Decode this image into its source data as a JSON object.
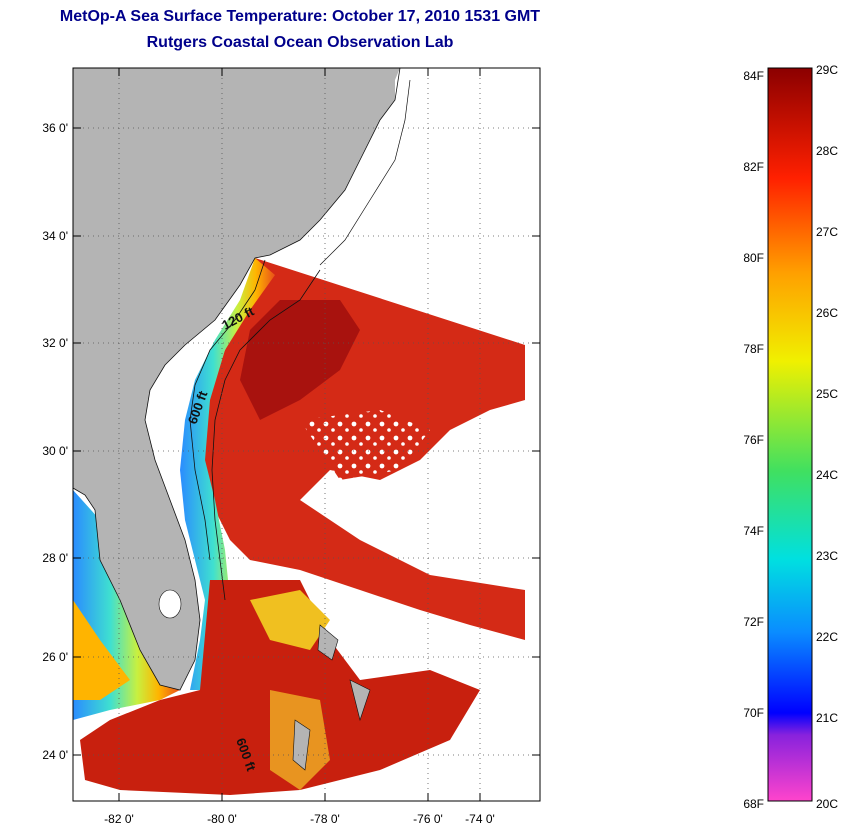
{
  "header": {
    "title": "MetOp-A Sea Surface Temperature:  October 17, 2010 1531 GMT",
    "subtitle": "Rutgers Coastal Ocean Observation Lab"
  },
  "map": {
    "lat_labels": [
      "36 0'",
      "34 0'",
      "32 0'",
      "30 0'",
      "28 0'",
      "26 0'",
      "24 0'"
    ],
    "lon_labels": [
      "-82 0'",
      "-80 0'",
      "-78 0'",
      "-76 0'",
      "-74 0'"
    ],
    "isobath_labels": [
      "120 ft",
      "600 ft",
      "600 ft"
    ],
    "colors": {
      "land": "#b4b4b4",
      "warm": "#d42a16",
      "hot": "#a8120e",
      "ocean_cloud": "#ffffff"
    }
  },
  "colorbar": {
    "fahrenheit": [
      "84F",
      "82F",
      "80F",
      "78F",
      "76F",
      "74F",
      "72F",
      "70F",
      "68F"
    ],
    "celsius": [
      "29C",
      "28C",
      "27C",
      "26C",
      "25C",
      "24C",
      "23C",
      "22C",
      "21C",
      "20C"
    ]
  }
}
